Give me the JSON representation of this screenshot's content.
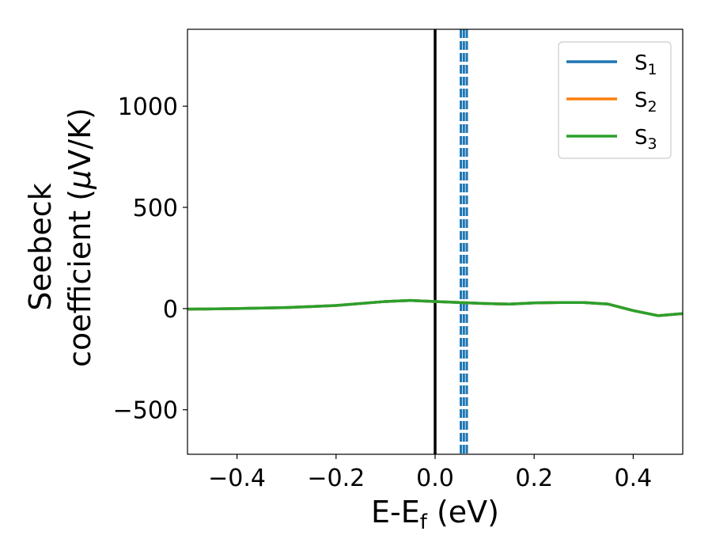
{
  "chart_data": {
    "type": "line",
    "xlabel": {
      "main": "E-E",
      "sub": "f",
      "unit": " (eV)"
    },
    "ylabel": {
      "line1": "Seebeck",
      "line2": "coefficient  (",
      "mu": "μ",
      "unit": "V/K)"
    },
    "xlim": [
      -0.5,
      0.5
    ],
    "ylim": [
      -720,
      1380
    ],
    "xticks": [
      -0.4,
      -0.2,
      0.0,
      0.2,
      0.4
    ],
    "xtick_labels": [
      "−0.4",
      "−0.2",
      "0.0",
      "0.2",
      "0.4"
    ],
    "yticks": [
      -500,
      0,
      500,
      1000
    ],
    "ytick_labels": [
      "−500",
      "0",
      "500",
      "1000"
    ],
    "legend": {
      "position": "top-right"
    },
    "series": [
      {
        "name": "S",
        "sub": "1",
        "color": "#1f77b4",
        "x": [
          -0.5,
          -0.4,
          -0.3,
          -0.2,
          -0.1,
          -0.05,
          0.0,
          0.05,
          0.1,
          0.15,
          0.2,
          0.25,
          0.3,
          0.35,
          0.4,
          0.45,
          0.5
        ],
        "y": [
          -3,
          0,
          5,
          15,
          35,
          40,
          35,
          30,
          25,
          22,
          28,
          30,
          30,
          22,
          -10,
          -35,
          -25
        ]
      },
      {
        "name": "S",
        "sub": "2",
        "color": "#ff7f0e",
        "x": [
          -0.5,
          -0.4,
          -0.3,
          -0.2,
          -0.1,
          -0.05,
          0.0,
          0.05,
          0.1,
          0.15,
          0.2,
          0.25,
          0.3,
          0.35,
          0.4,
          0.45,
          0.5
        ],
        "y": [
          -3,
          0,
          5,
          15,
          35,
          40,
          35,
          30,
          25,
          22,
          28,
          30,
          30,
          22,
          -10,
          -35,
          -25
        ]
      },
      {
        "name": "S",
        "sub": "3",
        "color": "#2ca02c",
        "x": [
          -0.5,
          -0.4,
          -0.3,
          -0.2,
          -0.1,
          -0.05,
          0.0,
          0.05,
          0.1,
          0.15,
          0.2,
          0.25,
          0.3,
          0.35,
          0.4,
          0.45,
          0.5
        ],
        "y": [
          -3,
          0,
          5,
          15,
          35,
          40,
          35,
          30,
          25,
          22,
          28,
          30,
          30,
          22,
          -10,
          -35,
          -25
        ]
      }
    ],
    "vlines": [
      {
        "x": 0.0,
        "color": "#000000",
        "style": "solid"
      },
      {
        "x": 0.052,
        "color": "#1f77b4",
        "style": "dashed"
      },
      {
        "x": 0.058,
        "color": "#1f77b4",
        "style": "dashed"
      },
      {
        "x": 0.064,
        "color": "#1f77b4",
        "style": "dashed"
      }
    ]
  }
}
